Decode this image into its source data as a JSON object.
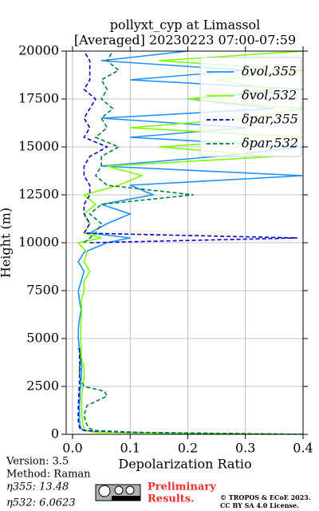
{
  "chart_data": {
    "type": "profile",
    "title": "pollyxt_cyp at Limassol",
    "subtitle": "[Averaged] 20230223 07:00-07:59",
    "xlabel": "Depolarization Ratio",
    "ylabel": "Height (m)",
    "y": [
      0,
      100,
      200,
      300,
      500,
      750,
      1000,
      1500,
      2000,
      2250,
      2500,
      3000,
      3500,
      4000,
      4500,
      5000,
      5500,
      6000,
      6500,
      7000,
      7500,
      8000,
      8500,
      9000,
      9500,
      10000,
      10250,
      10500,
      11000,
      11500,
      12000,
      12500,
      13000,
      13500,
      14000,
      14500,
      15000,
      15500,
      16000,
      16500,
      17000,
      17500,
      18000,
      18500,
      19000,
      19500,
      20000
    ],
    "series": [
      {
        "name": "δvol,355",
        "color": "#1e90ff",
        "linestyle": "solid",
        "values": [
          0.4,
          0.05,
          0.02,
          0.015,
          0.013,
          0.012,
          0.012,
          0.012,
          0.013,
          0.013,
          0.014,
          0.015,
          0.016,
          0.014,
          0.012,
          0.01,
          0.01,
          0.012,
          0.015,
          0.012,
          0.01,
          0.015,
          0.02,
          0.01,
          0.02,
          0.06,
          0.1,
          0.03,
          0.06,
          0.1,
          0.05,
          0.14,
          0.1,
          0.4,
          0.05,
          0.25,
          0.4,
          0.1,
          0.3,
          0.05,
          0.35,
          0.2,
          0.4,
          0.1,
          0.3,
          0.05,
          0.2
        ]
      },
      {
        "name": "δvol,532",
        "color": "#7cfc00",
        "linestyle": "solid",
        "values": [
          0.4,
          0.04,
          0.025,
          0.02,
          0.018,
          0.017,
          0.016,
          0.016,
          0.016,
          0.017,
          0.018,
          0.02,
          0.02,
          0.015,
          0.015,
          0.014,
          0.014,
          0.015,
          0.016,
          0.015,
          0.02,
          0.02,
          0.03,
          0.02,
          0.025,
          0.01,
          0.05,
          0.02,
          0.03,
          0.02,
          0.04,
          0.02,
          0.08,
          0.12,
          0.06,
          0.35,
          0.15,
          0.4,
          0.1,
          0.3,
          0.4,
          0.2,
          0.35,
          0.25,
          0.4,
          0.15,
          0.4
        ]
      },
      {
        "name": "δpar,355",
        "color": "#0000cd",
        "linestyle": "dashed",
        "values": [
          0.4,
          0.1,
          0.02,
          0.013,
          0.011,
          0.01,
          0.01,
          0.01,
          0.011,
          0.011,
          0.012,
          0.012,
          0.013,
          0.012,
          0.012,
          null,
          null,
          null,
          null,
          null,
          null,
          null,
          null,
          null,
          null,
          0.03,
          0.39,
          0.02,
          0.03,
          0.02,
          0.02,
          0.03,
          0.03,
          0.02,
          0.02,
          0.03,
          0.06,
          0.02,
          0.03,
          0.02,
          0.03,
          0.04,
          0.02,
          0.03,
          0.03,
          0.03,
          0.02
        ]
      },
      {
        "name": "δpar,532",
        "color": "#007f3f",
        "linestyle": "dashed",
        "values": [
          0.4,
          0.12,
          0.04,
          0.03,
          0.025,
          0.022,
          0.02,
          0.025,
          0.06,
          0.055,
          0.02,
          0.012,
          0.012,
          0.015,
          0.01,
          null,
          null,
          null,
          null,
          null,
          null,
          null,
          null,
          null,
          null,
          0.02,
          0.03,
          0.04,
          0.05,
          0.03,
          0.05,
          0.21,
          0.06,
          0.04,
          0.05,
          0.05,
          0.08,
          0.04,
          0.06,
          0.05,
          0.07,
          0.05,
          0.06,
          0.05,
          0.08,
          0.06,
          0.07
        ]
      }
    ],
    "xlim": [
      -0.011,
      0.4
    ],
    "ylim": [
      0,
      20000
    ],
    "xticks": [
      {
        "value": 0,
        "label": "0.0"
      },
      0.1,
      0.2,
      0.3,
      0.4
    ],
    "yticks": [
      0,
      2500,
      5000,
      7500,
      10000,
      12500,
      15000,
      17500,
      20000
    ],
    "grid": true,
    "legend": "upper right"
  },
  "footer": {
    "version": "Version: 3.5",
    "method": "Method: Raman",
    "eta355": "η355:  13.48",
    "eta532": "η532: 6.0623",
    "preliminary": [
      "Preliminary",
      "Results."
    ],
    "copyright": [
      "© TROPOS & ECoE 2023.",
      "CC BY SA 4.0 License."
    ]
  }
}
